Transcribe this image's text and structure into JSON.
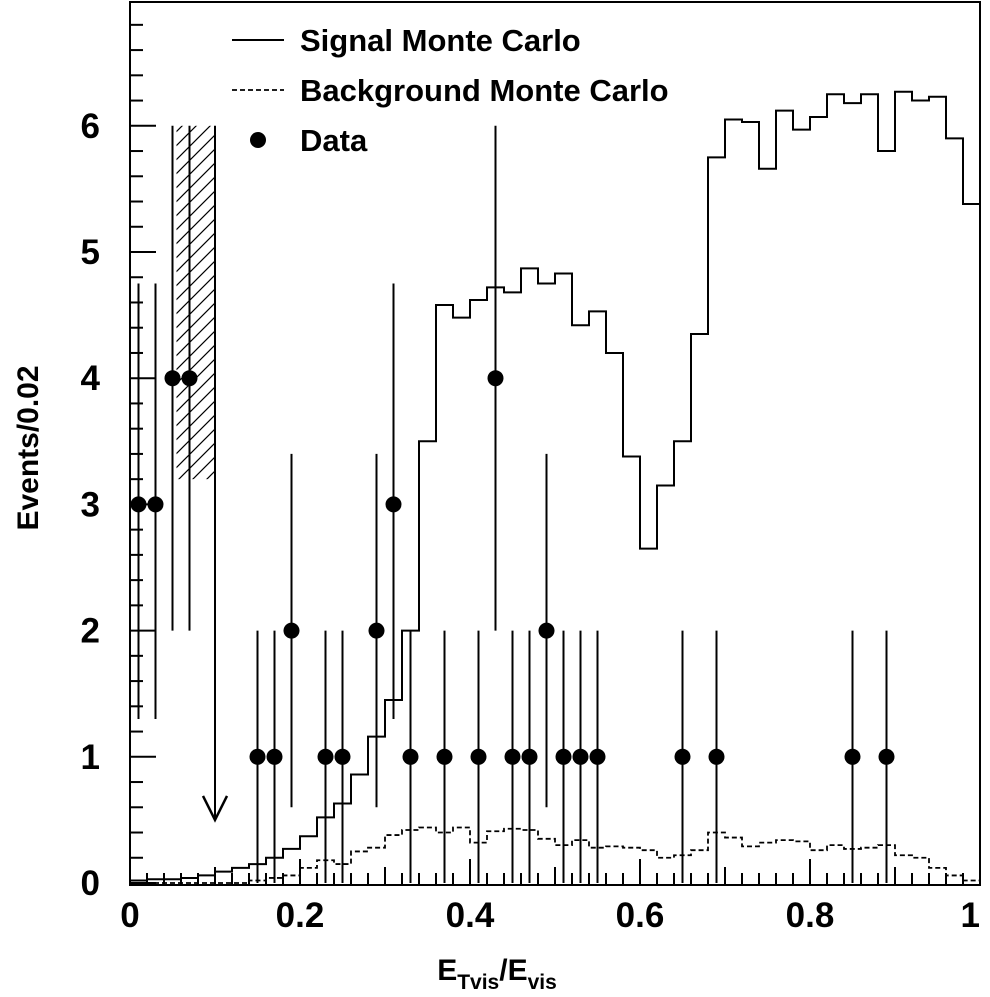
{
  "chart_data": {
    "type": "histogram",
    "xlabel": {
      "main": "E",
      "sub1": "Tvis",
      "slash": "/E",
      "sub2": "vis"
    },
    "ylabel": "Events/0.02",
    "xlim": [
      0,
      1
    ],
    "ylim": [
      0,
      7
    ],
    "bin_width": 0.02,
    "x_ticks": [
      {
        "value": 0,
        "label": "0"
      },
      {
        "value": 0.2,
        "label": "0.2"
      },
      {
        "value": 0.4,
        "label": "0.4"
      },
      {
        "value": 0.6,
        "label": "0.6"
      },
      {
        "value": 0.8,
        "label": "0.8"
      },
      {
        "value": 1,
        "label": "1"
      }
    ],
    "y_ticks": [
      {
        "value": 0,
        "label": "0"
      },
      {
        "value": 1,
        "label": "1"
      },
      {
        "value": 2,
        "label": "2"
      },
      {
        "value": 3,
        "label": "3"
      },
      {
        "value": 4,
        "label": "4"
      },
      {
        "value": 5,
        "label": "5"
      },
      {
        "value": 6,
        "label": "6"
      }
    ],
    "legend": [
      {
        "label": "Signal Monte Carlo",
        "style": "solid"
      },
      {
        "label": "Background Monte Carlo",
        "style": "dashed"
      },
      {
        "label": "Data",
        "style": "marker"
      }
    ],
    "legend_position": "top",
    "cut": {
      "x": 0.1,
      "hatched_range": [
        0.05,
        0.1
      ]
    },
    "signal_mc": [
      0.02,
      0.03,
      0.03,
      0.04,
      0.06,
      0.09,
      0.12,
      0.15,
      0.2,
      0.27,
      0.37,
      0.52,
      0.63,
      0.86,
      1.16,
      1.45,
      2.0,
      3.5,
      4.58,
      4.48,
      4.62,
      4.72,
      4.68,
      4.87,
      4.75,
      4.83,
      4.42,
      4.53,
      4.2,
      3.38,
      2.65,
      3.15,
      3.5,
      4.35,
      5.75,
      6.05,
      6.03,
      5.66,
      6.12,
      5.97,
      6.07,
      6.25,
      6.18,
      6.25,
      5.8,
      6.27,
      6.2,
      6.23,
      5.9,
      5.38
    ],
    "background_mc": [
      0,
      0,
      0,
      0,
      0,
      0,
      0,
      0.02,
      0.04,
      0.06,
      0.12,
      0.18,
      0.15,
      0.25,
      0.28,
      0.38,
      0.42,
      0.44,
      0.4,
      0.44,
      0.32,
      0.41,
      0.43,
      0.42,
      0.35,
      0.3,
      0.34,
      0.28,
      0.29,
      0.28,
      0.26,
      0.2,
      0.22,
      0.26,
      0.4,
      0.36,
      0.29,
      0.32,
      0.34,
      0.33,
      0.26,
      0.3,
      0.27,
      0.28,
      0.3,
      0.22,
      0.2,
      0.12,
      0.06,
      0.02
    ],
    "data_points": [
      {
        "x": 0.01,
        "y": 3,
        "err_low": 1.3,
        "err_high": 4.75
      },
      {
        "x": 0.03,
        "y": 3,
        "err_low": 1.3,
        "err_high": 4.75
      },
      {
        "x": 0.05,
        "y": 4,
        "err_low": 2.0,
        "err_high": 6.0
      },
      {
        "x": 0.07,
        "y": 4,
        "err_low": 2.0,
        "err_high": 6.0
      },
      {
        "x": 0.15,
        "y": 1,
        "err_low": 0,
        "err_high": 2.0
      },
      {
        "x": 0.17,
        "y": 1,
        "err_low": 0,
        "err_high": 2.0
      },
      {
        "x": 0.19,
        "y": 2,
        "err_low": 0.6,
        "err_high": 3.4
      },
      {
        "x": 0.23,
        "y": 1,
        "err_low": 0,
        "err_high": 2.0
      },
      {
        "x": 0.25,
        "y": 1,
        "err_low": 0,
        "err_high": 2.0
      },
      {
        "x": 0.29,
        "y": 2,
        "err_low": 0.6,
        "err_high": 3.4
      },
      {
        "x": 0.31,
        "y": 3,
        "err_low": 1.3,
        "err_high": 4.75
      },
      {
        "x": 0.33,
        "y": 1,
        "err_low": 0,
        "err_high": 2.0
      },
      {
        "x": 0.37,
        "y": 1,
        "err_low": 0,
        "err_high": 2.0
      },
      {
        "x": 0.41,
        "y": 1,
        "err_low": 0,
        "err_high": 2.0
      },
      {
        "x": 0.43,
        "y": 4,
        "err_low": 2.0,
        "err_high": 6.0
      },
      {
        "x": 0.45,
        "y": 1,
        "err_low": 0,
        "err_high": 2.0
      },
      {
        "x": 0.47,
        "y": 1,
        "err_low": 0,
        "err_high": 2.0
      },
      {
        "x": 0.49,
        "y": 2,
        "err_low": 0.6,
        "err_high": 3.4
      },
      {
        "x": 0.51,
        "y": 1,
        "err_low": 0,
        "err_high": 2.0
      },
      {
        "x": 0.53,
        "y": 1,
        "err_low": 0,
        "err_high": 2.0
      },
      {
        "x": 0.55,
        "y": 1,
        "err_low": 0,
        "err_high": 2.0
      },
      {
        "x": 0.65,
        "y": 1,
        "err_low": 0,
        "err_high": 2.0
      },
      {
        "x": 0.69,
        "y": 1,
        "err_low": 0,
        "err_high": 2.0
      },
      {
        "x": 0.85,
        "y": 1,
        "err_low": 0,
        "err_high": 2.0
      },
      {
        "x": 0.89,
        "y": 1,
        "err_low": 0,
        "err_high": 2.0
      }
    ]
  }
}
